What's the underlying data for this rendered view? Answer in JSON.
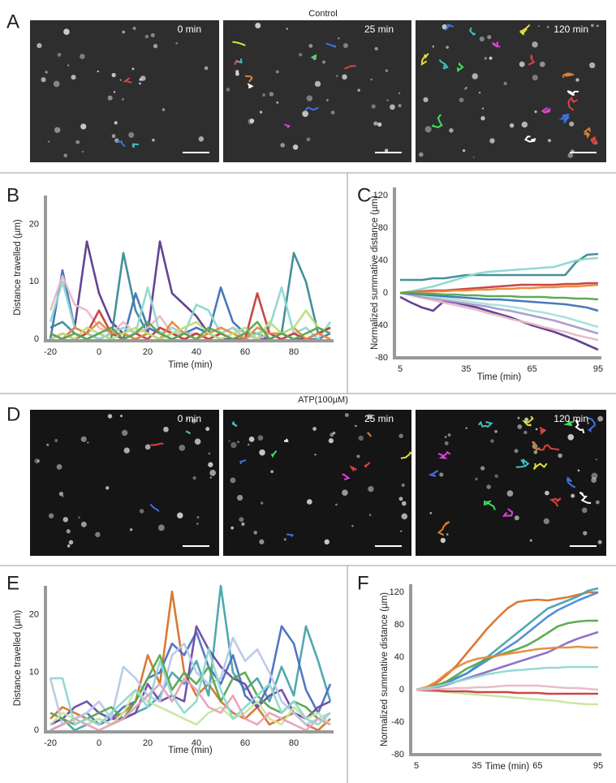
{
  "panels": {
    "letters": [
      "A",
      "B",
      "C",
      "D",
      "E",
      "F"
    ],
    "images": [
      {
        "title": "Control",
        "frames": [
          "0 min",
          "25 min",
          "120 min"
        ]
      },
      {
        "title": "ATP(100µM)",
        "frames": [
          "0 min",
          "25 min",
          "120 min"
        ]
      }
    ]
  },
  "chart_data": [
    {
      "type": "line",
      "xlabel": "Time (min)",
      "ylabel": "Distance travelled (µm)",
      "xlim": [
        -20,
        95
      ],
      "ylim": [
        0,
        25
      ],
      "xticks": [
        -20,
        0,
        20,
        40,
        60,
        80
      ],
      "yticks": [
        0,
        10,
        20
      ],
      "x": [
        -20,
        -15,
        -10,
        -5,
        0,
        5,
        10,
        15,
        20,
        25,
        30,
        35,
        40,
        45,
        50,
        55,
        60,
        65,
        70,
        75,
        80,
        85,
        90,
        95
      ],
      "series": [
        {
          "color": "#5b3a8e",
          "values": [
            1,
            0,
            2,
            17,
            8,
            3,
            1,
            0,
            1,
            17,
            8,
            6,
            4,
            1,
            0,
            0,
            1,
            0,
            0,
            1,
            0,
            0,
            1,
            2
          ]
        },
        {
          "color": "#3a8a96",
          "values": [
            2,
            3,
            1,
            0,
            1,
            0,
            15,
            5,
            1,
            0,
            1,
            0,
            1,
            0,
            1,
            0,
            1,
            1,
            0,
            1,
            15,
            10,
            1,
            2
          ]
        },
        {
          "color": "#3e72b8",
          "values": [
            0,
            12,
            2,
            1,
            0,
            1,
            0,
            8,
            2,
            1,
            0,
            1,
            2,
            1,
            9,
            3,
            1,
            0,
            1,
            0,
            1,
            0,
            0,
            1
          ]
        },
        {
          "color": "#e8b8c8",
          "values": [
            5,
            11,
            6,
            5,
            2,
            1,
            3,
            1,
            2,
            4,
            1,
            1,
            1,
            0,
            1,
            2,
            1,
            0,
            1,
            0,
            1,
            0,
            1,
            0
          ]
        },
        {
          "color": "#8fd6d0",
          "values": [
            3,
            10,
            2,
            1,
            0,
            1,
            2,
            1,
            9,
            1,
            2,
            1,
            6,
            5,
            1,
            2,
            0,
            1,
            2,
            9,
            1,
            2,
            0,
            3
          ]
        },
        {
          "color": "#c83c3c",
          "values": [
            0,
            1,
            0,
            1,
            5,
            1,
            0,
            1,
            0,
            2,
            1,
            0,
            1,
            0,
            1,
            0,
            0,
            8,
            1,
            0,
            1,
            0,
            1,
            2
          ]
        },
        {
          "color": "#e8893a",
          "values": [
            1,
            0,
            2,
            1,
            3,
            1,
            1,
            0,
            1,
            0,
            3,
            1,
            0,
            1,
            2,
            1,
            0,
            2,
            1,
            1,
            2,
            0,
            1,
            0
          ]
        },
        {
          "color": "#b6df80",
          "values": [
            0,
            1,
            0,
            2,
            1,
            0,
            1,
            2,
            1,
            0,
            1,
            2,
            3,
            1,
            0,
            1,
            2,
            0,
            3,
            1,
            2,
            5,
            2,
            1
          ]
        },
        {
          "color": "#58a64d",
          "values": [
            1,
            0,
            1,
            0,
            1,
            2,
            0,
            1,
            3,
            1,
            0,
            1,
            0,
            2,
            1,
            0,
            1,
            3,
            0,
            1,
            0,
            1,
            2,
            1
          ]
        }
      ]
    },
    {
      "type": "line",
      "xlabel": "Time (min)",
      "ylabel": "Normalized summative distance (µm)",
      "xlim": [
        5,
        95
      ],
      "ylim": [
        -80,
        130
      ],
      "xticks": [
        5,
        35,
        65,
        95
      ],
      "yticks": [
        -80,
        -40,
        0,
        40,
        80,
        120
      ],
      "x": [
        5,
        10,
        15,
        20,
        25,
        30,
        35,
        40,
        45,
        50,
        55,
        60,
        65,
        70,
        75,
        80,
        85,
        90,
        95
      ],
      "series": [
        {
          "color": "#3a8a96",
          "values": [
            16,
            16,
            16,
            18,
            18,
            20,
            22,
            22,
            22,
            22,
            22,
            22,
            22,
            22,
            22,
            22,
            38,
            47,
            48
          ]
        },
        {
          "color": "#8fd6d0",
          "values": [
            0,
            2,
            5,
            8,
            12,
            16,
            20,
            24,
            26,
            27,
            28,
            29,
            30,
            31,
            32,
            36,
            40,
            42,
            43
          ]
        },
        {
          "color": "#5b3a8e",
          "values": [
            -5,
            -12,
            -18,
            -22,
            -10,
            -12,
            -15,
            -18,
            -22,
            -26,
            -30,
            -35,
            -40,
            -44,
            -48,
            -53,
            -58,
            -64,
            -70
          ]
        },
        {
          "color": "#e8b8c8",
          "values": [
            0,
            -3,
            -6,
            -9,
            -12,
            -15,
            -18,
            -21,
            -25,
            -28,
            -32,
            -35,
            -38,
            -42,
            -45,
            -48,
            -52,
            -55,
            -58
          ]
        },
        {
          "color": "#a89ac8",
          "values": [
            0,
            -2,
            -5,
            -7,
            -9,
            -11,
            -13,
            -15,
            -17,
            -20,
            -22,
            -25,
            -28,
            -31,
            -34,
            -38,
            -42,
            -46,
            -50
          ]
        },
        {
          "color": "#a8e0dc",
          "values": [
            0,
            -1,
            -3,
            -5,
            -6,
            -8,
            -10,
            -12,
            -14,
            -15,
            -17,
            -19,
            -22,
            -24,
            -27,
            -30,
            -34,
            -38,
            -42
          ]
        },
        {
          "color": "#3e72b8",
          "values": [
            0,
            -1,
            -2,
            -3,
            -4,
            -5,
            -6,
            -7,
            -8,
            -8,
            -9,
            -10,
            -11,
            -12,
            -13,
            -14,
            -16,
            -18,
            -22
          ]
        },
        {
          "color": "#c83c3c",
          "values": [
            0,
            1,
            2,
            3,
            3,
            4,
            5,
            6,
            7,
            8,
            9,
            10,
            10,
            10,
            10,
            11,
            11,
            12,
            12
          ]
        },
        {
          "color": "#e8893a",
          "values": [
            0,
            1,
            1,
            2,
            2,
            3,
            3,
            4,
            4,
            5,
            5,
            6,
            6,
            7,
            7,
            8,
            8,
            9,
            10
          ]
        },
        {
          "color": "#58a64d",
          "values": [
            0,
            0,
            -1,
            -1,
            -2,
            -2,
            -3,
            -3,
            -4,
            -4,
            -4,
            -5,
            -5,
            -5,
            -6,
            -6,
            -7,
            -7,
            -8
          ]
        }
      ]
    },
    {
      "type": "line",
      "xlabel": "Time (min)",
      "ylabel": "Distance travelled (µm)",
      "xlim": [
        -20,
        95
      ],
      "ylim": [
        0,
        25
      ],
      "xticks": [
        -20,
        0,
        20,
        40,
        60,
        80
      ],
      "yticks": [
        0,
        10,
        20
      ],
      "x": [
        -20,
        -15,
        -10,
        -5,
        0,
        5,
        10,
        15,
        20,
        25,
        30,
        35,
        40,
        45,
        50,
        55,
        60,
        65,
        70,
        75,
        80,
        85,
        90,
        95
      ],
      "series": [
        {
          "color": "#d9722a",
          "values": [
            2,
            4,
            3,
            2,
            1,
            2,
            3,
            5,
            13,
            8,
            24,
            10,
            6,
            8,
            5,
            3,
            2,
            4,
            1,
            2,
            3,
            1,
            0,
            2
          ]
        },
        {
          "color": "#47a4aa",
          "values": [
            1,
            2,
            0,
            1,
            2,
            1,
            2,
            3,
            4,
            6,
            10,
            8,
            12,
            6,
            25,
            10,
            7,
            9,
            5,
            11,
            6,
            18,
            12,
            5
          ]
        },
        {
          "color": "#4a6fc0",
          "values": [
            0,
            1,
            2,
            3,
            1,
            2,
            4,
            5,
            9,
            10,
            15,
            13,
            17,
            11,
            8,
            13,
            6,
            4,
            8,
            18,
            15,
            7,
            3,
            8
          ]
        },
        {
          "color": "#6b4aa5",
          "values": [
            1,
            2,
            4,
            5,
            3,
            2,
            2,
            3,
            8,
            5,
            6,
            5,
            18,
            14,
            11,
            9,
            8,
            4,
            6,
            7,
            3,
            2,
            4,
            5
          ]
        },
        {
          "color": "#b8c8e8",
          "values": [
            9,
            1,
            2,
            3,
            5,
            2,
            11,
            9,
            6,
            5,
            13,
            15,
            10,
            8,
            9,
            16,
            12,
            14,
            10,
            5,
            3,
            1,
            2,
            3
          ]
        },
        {
          "color": "#58a64d",
          "values": [
            3,
            2,
            1,
            2,
            3,
            4,
            2,
            5,
            9,
            13,
            7,
            10,
            8,
            11,
            5,
            9,
            10,
            6,
            4,
            3,
            5,
            4,
            2,
            1
          ]
        },
        {
          "color": "#c8e6a0",
          "values": [
            1,
            3,
            2,
            1,
            2,
            1,
            3,
            7,
            5,
            4,
            3,
            2,
            1,
            3,
            4,
            2,
            3,
            5,
            2,
            1,
            4,
            2,
            3,
            1
          ]
        },
        {
          "color": "#e8a0b8",
          "values": [
            0,
            1,
            2,
            1,
            0,
            1,
            2,
            4,
            6,
            8,
            5,
            9,
            7,
            4,
            3,
            6,
            2,
            1,
            3,
            2,
            1,
            0,
            2,
            1
          ]
        },
        {
          "color": "#90d8d0",
          "values": [
            9,
            9,
            1,
            2,
            1,
            3,
            5,
            7,
            4,
            12,
            6,
            3,
            5,
            14,
            7,
            2,
            4,
            6,
            8,
            3,
            5,
            2,
            1,
            3
          ]
        }
      ]
    },
    {
      "type": "line",
      "xlabel": "Time (min)",
      "ylabel": "Normalized summative distance (µm)",
      "xlim": [
        5,
        95
      ],
      "ylim": [
        -80,
        130
      ],
      "xticks": [
        5,
        35,
        65,
        95
      ],
      "yticks": [
        -80,
        -40,
        0,
        40,
        80,
        120
      ],
      "x": [
        5,
        10,
        15,
        20,
        25,
        30,
        35,
        40,
        45,
        50,
        55,
        60,
        65,
        70,
        75,
        80,
        85,
        90,
        95
      ],
      "series": [
        {
          "color": "#d9722a",
          "values": [
            0,
            3,
            8,
            18,
            30,
            45,
            60,
            75,
            88,
            100,
            108,
            110,
            111,
            110,
            112,
            114,
            117,
            120,
            120
          ]
        },
        {
          "color": "#47a4aa",
          "values": [
            0,
            2,
            5,
            10,
            15,
            20,
            30,
            40,
            50,
            60,
            70,
            80,
            90,
            100,
            105,
            110,
            115,
            122,
            125
          ]
        },
        {
          "color": "#4a8ad8",
          "values": [
            0,
            2,
            4,
            8,
            14,
            20,
            28,
            36,
            44,
            52,
            60,
            70,
            80,
            90,
            98,
            104,
            110,
            115,
            120
          ]
        },
        {
          "color": "#58a64d",
          "values": [
            0,
            2,
            5,
            10,
            18,
            26,
            32,
            38,
            42,
            46,
            50,
            55,
            62,
            70,
            78,
            82,
            84,
            85,
            85
          ]
        },
        {
          "color": "#8a6ac8",
          "values": [
            0,
            1,
            3,
            6,
            10,
            14,
            18,
            22,
            26,
            30,
            34,
            38,
            42,
            46,
            52,
            58,
            63,
            67,
            71
          ]
        },
        {
          "color": "#e8893a",
          "values": [
            0,
            3,
            10,
            20,
            28,
            34,
            38,
            40,
            42,
            44,
            46,
            48,
            50,
            51,
            52,
            52,
            53,
            52,
            52
          ]
        },
        {
          "color": "#90d8d0",
          "values": [
            0,
            2,
            4,
            7,
            10,
            13,
            16,
            19,
            21,
            23,
            24,
            25,
            26,
            27,
            27,
            28,
            28,
            28,
            28
          ]
        },
        {
          "color": "#c8e6a0",
          "values": [
            0,
            -1,
            -2,
            -3,
            -4,
            -5,
            -6,
            -7,
            -8,
            -9,
            -10,
            -11,
            -12,
            -13,
            -14,
            -16,
            -17,
            -18,
            -18
          ]
        },
        {
          "color": "#c83c3c",
          "values": [
            0,
            -1,
            -1,
            -2,
            -2,
            -2,
            -3,
            -3,
            -3,
            -3,
            -4,
            -4,
            -4,
            -5,
            -5,
            -5,
            -5,
            -5,
            -5
          ]
        },
        {
          "color": "#e8b8c8",
          "values": [
            0,
            0,
            1,
            1,
            2,
            2,
            3,
            3,
            4,
            5,
            5,
            5,
            5,
            4,
            3,
            2,
            2,
            1,
            0
          ]
        }
      ]
    }
  ]
}
